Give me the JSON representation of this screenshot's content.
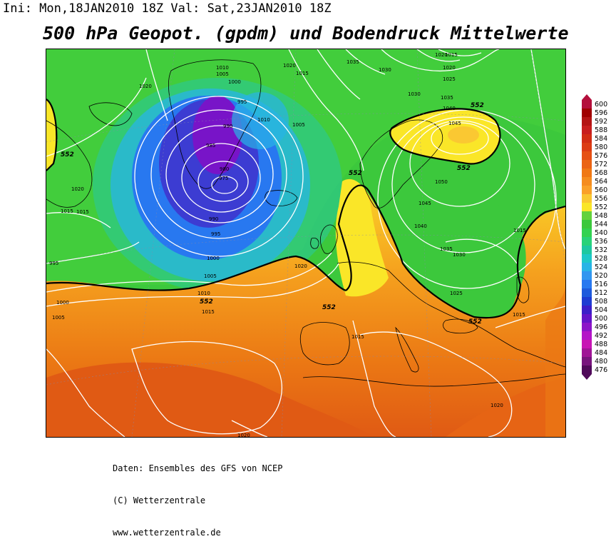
{
  "header": {
    "init_text": "Ini: Mon,18JAN2010 18Z Val: Sat,23JAN2010 18Z",
    "title": "500 hPa Geopot. (gpdm) und Bodendruck Mittelwerte"
  },
  "legend": {
    "levels": [
      "600",
      "596",
      "592",
      "588",
      "584",
      "580",
      "576",
      "572",
      "568",
      "564",
      "560",
      "556",
      "552",
      "548",
      "544",
      "540",
      "536",
      "532",
      "528",
      "524",
      "520",
      "516",
      "512",
      "508",
      "504",
      "500",
      "496",
      "492",
      "488",
      "484",
      "480",
      "476"
    ],
    "colors": [
      "#b40f3c",
      "#a00000",
      "#b41414",
      "#c81e1e",
      "#d22d14",
      "#dc3c14",
      "#e65014",
      "#eb6414",
      "#f07814",
      "#f58c1e",
      "#faa028",
      "#fac832",
      "#fae628",
      "#64d23c",
      "#3cc83c",
      "#32d250",
      "#28d278",
      "#1ec8a0",
      "#1ec8c8",
      "#28b4e6",
      "#3296f0",
      "#2878f0",
      "#1e5adc",
      "#1e3cd2",
      "#3c1ec8",
      "#6414c8",
      "#8c14c8",
      "#b414c8",
      "#c814b4",
      "#a01496",
      "#78147d",
      "#500a5a"
    ]
  },
  "map": {
    "geopotential_labels": [
      {
        "text": "552"
      },
      {
        "text": "552"
      },
      {
        "text": "552"
      },
      {
        "text": "552"
      },
      {
        "text": "552"
      },
      {
        "text": "552"
      },
      {
        "text": "552"
      }
    ],
    "pressure_labels": [
      "1020",
      "1020",
      "1015",
      "1010",
      "1005",
      "1000",
      "995",
      "990",
      "985",
      "980",
      "975",
      "990",
      "995",
      "1000",
      "1005",
      "1010",
      "1015",
      "1020",
      "1010",
      "1005",
      "1020",
      "1015",
      "1035",
      "1030",
      "1015",
      "1020",
      "1025",
      "1030",
      "1035",
      "1040",
      "1045",
      "1050",
      "1045",
      "1040",
      "1035",
      "1030",
      "1025",
      "1015",
      "1015",
      "1020",
      "1015",
      "1020",
      "1000",
      "1005",
      "995",
      "1015",
      "1020"
    ]
  },
  "credits": {
    "line1": "Daten: Ensembles des GFS von NCEP",
    "line2": "(C) Wetterzentrale",
    "line3": "www.wetterzentrale.de"
  }
}
